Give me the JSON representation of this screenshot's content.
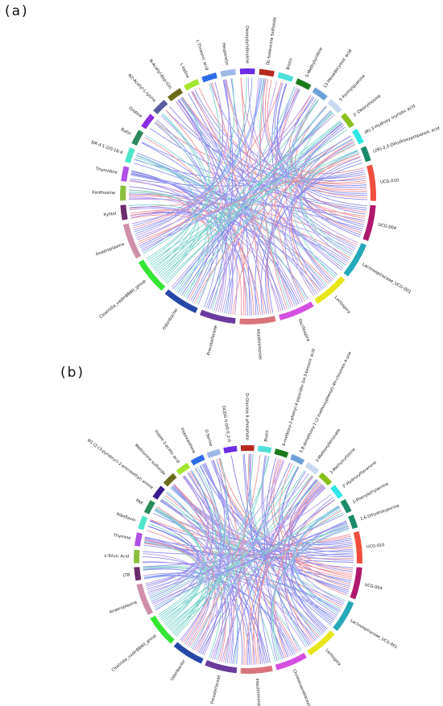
{
  "panels": [
    {
      "label": "(a)",
      "cx": 0,
      "cy": 0,
      "sectors": [
        {
          "name": "UCG-010",
          "color": "#f04e3e"
        },
        {
          "name": "UCG-004",
          "color": "#b0186b"
        },
        {
          "name": "Lachnospiraceae_UCG-001",
          "color": "#25a9b8"
        },
        {
          "name": "Lactospira",
          "color": "#e6e61a"
        },
        {
          "name": "Oscillospira",
          "color": "#d44fe0"
        },
        {
          "name": "Intestinimonas",
          "color": "#d9737b"
        },
        {
          "name": "Prevotellaceae",
          "color": "#6a3b9c"
        },
        {
          "name": "Odoribacter",
          "color": "#2848a8"
        },
        {
          "name": "Clostridia_vadinBB60_group",
          "color": "#33e633"
        },
        {
          "name": "Anaeroplasma",
          "color": "#cf8fa8"
        },
        {
          "name": "Xylitol",
          "color": "#6b2c6b"
        },
        {
          "name": "Xanthosine",
          "color": "#8bbf3b"
        },
        {
          "name": "Thymidine",
          "color": "#b050e6"
        },
        {
          "name": "SM d 1:2/0:16:4",
          "color": "#4de6c8"
        },
        {
          "name": "Rutin",
          "color": "#2b8a5c"
        },
        {
          "name": "Orotine",
          "color": "#8a2be2"
        },
        {
          "name": "N2-Acetyl-L-lysine",
          "color": "#5a5a9e"
        },
        {
          "name": "N-Acetyl-Asp-Gln",
          "color": "#6b6b1a"
        },
        {
          "name": "L-Valine",
          "color": "#a5e62e"
        },
        {
          "name": "L-Threonic acid",
          "color": "#2e6be6"
        },
        {
          "name": "Hesperetin",
          "color": "#9fb8e6"
        },
        {
          "name": "Deoxypyridinoline",
          "color": "#6b2ee6"
        },
        {
          "name": "DL-Isoleucine Sulfoxide",
          "color": "#b5281e"
        },
        {
          "name": "Biotin",
          "color": "#4ee0d8"
        },
        {
          "name": "5-Methyluridine",
          "color": "#1a7a1a"
        },
        {
          "name": "13-Hexadecynoic acid",
          "color": "#6ea0d8"
        },
        {
          "name": "5-Formylguanine",
          "color": "#c8d8f0"
        },
        {
          "name": "2'-Deoxyinosine",
          "color": "#8bbf1a"
        },
        {
          "name": "(R)-3-Hydroxy myristic acid",
          "color": "#2ee6e6"
        },
        {
          "name": "(2R)-2,3-Dihydroxypropanoic acid",
          "color": "#1a8a6b"
        }
      ]
    },
    {
      "label": "(b)",
      "sectors": [
        {
          "name": "UCG-010",
          "color": "#f04e3e"
        },
        {
          "name": "UCG-004",
          "color": "#b0186b"
        },
        {
          "name": "Lachnospiraceae_UCG-001",
          "color": "#25a9b8"
        },
        {
          "name": "Lactospira",
          "color": "#e6e61a"
        },
        {
          "name": "Christensenellaceae",
          "color": "#d44fe0"
        },
        {
          "name": "Intestinimonas",
          "color": "#d9737b"
        },
        {
          "name": "Prevotellaceae",
          "color": "#6a3b9c"
        },
        {
          "name": "Odoribacter",
          "color": "#2848a8"
        },
        {
          "name": "Clostridia_vadinBB60_group",
          "color": "#33e633"
        },
        {
          "name": "Anaeroplasma",
          "color": "#cf8fa8"
        },
        {
          "name": "LTB",
          "color": "#6b2c6b"
        },
        {
          "name": "o-Toluic Acid",
          "color": "#8bbf3b"
        },
        {
          "name": "Thymine",
          "color": "#b050e6"
        },
        {
          "name": "Riboflavin",
          "color": "#4de6c8"
        },
        {
          "name": "PAK",
          "color": "#2b8a5c"
        },
        {
          "name": "N1-(2-(3-pyridinyl)-2-aminoethyl) amine",
          "color": "#3a1a8a"
        },
        {
          "name": "Methionine sulfoxide",
          "color": "#6b6b1a"
        },
        {
          "name": "Indole-3-acetic acid",
          "color": "#a5e62e"
        },
        {
          "name": "Hypoxanthine",
          "color": "#2e6be6"
        },
        {
          "name": "D-Serine",
          "color": "#9fb8e6"
        },
        {
          "name": "DGDG 0:0/0:0_2:0",
          "color": "#6b2ee6"
        },
        {
          "name": "D-Glucose 6-phosphate",
          "color": "#b5281e"
        },
        {
          "name": "Biotin",
          "color": "#4ee0d8"
        },
        {
          "name": "6-methoxy-2-phenyl-4-piperidin-1H-3-benzoic acid",
          "color": "#1a7a1a"
        },
        {
          "name": "5,8-dimethoxy-2-(2-methoxyphenyl)-4H-chromen-4-one",
          "color": "#6ea0d8"
        },
        {
          "name": "3-Methoxybenzoate",
          "color": "#c8d8f0"
        },
        {
          "name": "3-Methylcytosine",
          "color": "#8bbf1a"
        },
        {
          "name": "3'-Hydroxyflavanone",
          "color": "#2ee6e6"
        },
        {
          "name": "2-Phenylethylamine",
          "color": "#1a8a6b"
        },
        {
          "name": "3,6-Dihydroxypurine",
          "color": "#1a8a6b"
        }
      ]
    }
  ]
}
